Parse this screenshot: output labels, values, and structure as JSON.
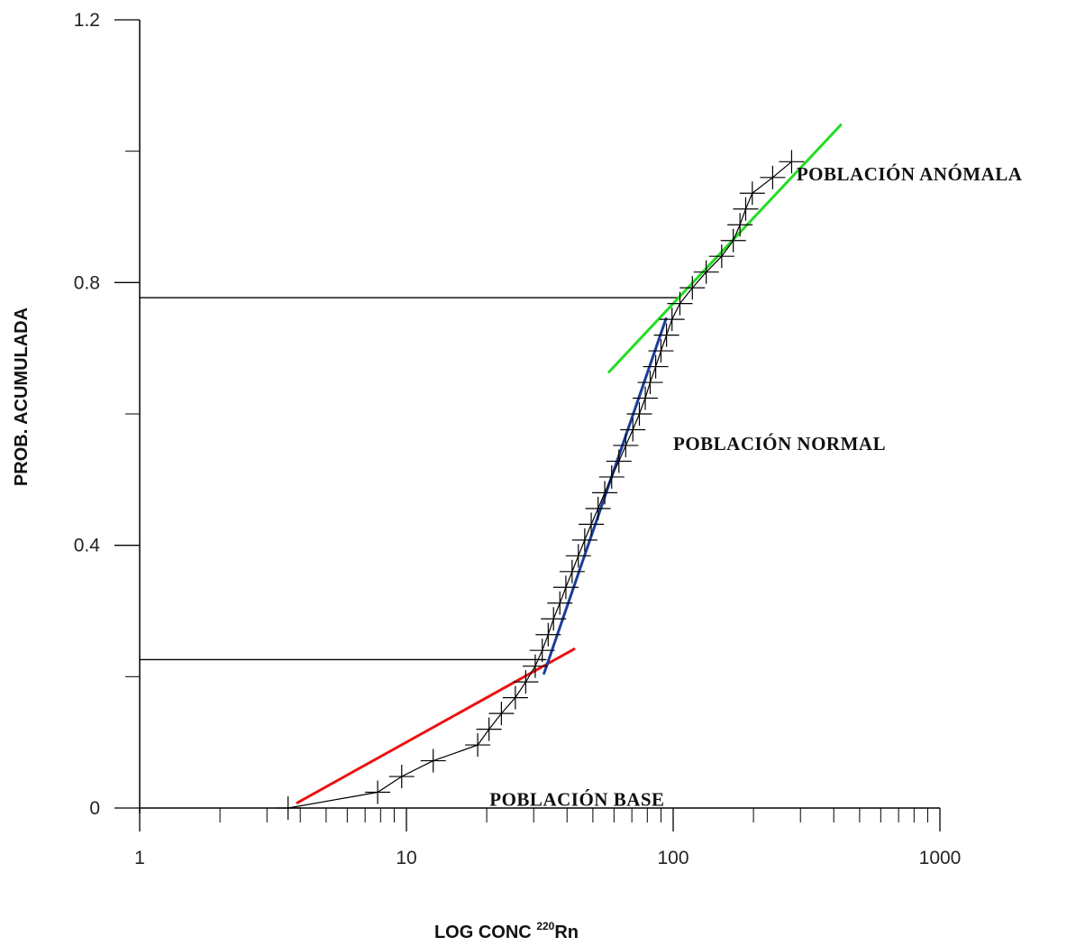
{
  "chart_data": {
    "type": "line",
    "title": "",
    "xlabel": {
      "prefix": "LOG CONC ",
      "sup": "220",
      "suffix": "Rn"
    },
    "ylabel": "PROB. ACUMULADA",
    "x_scale": "log",
    "xlim": [
      1,
      1000
    ],
    "ylim": [
      0,
      1.2
    ],
    "x_ticks": [
      1,
      10,
      100,
      1000
    ],
    "x_tick_labels": [
      "1",
      "10",
      "100",
      "1000"
    ],
    "y_ticks": [
      0,
      0.4,
      0.8,
      1.2
    ],
    "y_tick_labels": [
      "0",
      "0.4",
      "0.8",
      "1.2"
    ],
    "y_minor_ticks": [
      0.2,
      0.6,
      1.0
    ],
    "grid": false,
    "legend": "none",
    "series": [
      {
        "type": "line",
        "marker": "cross",
        "color": "#000000",
        "x": [
          3.6,
          7.8,
          9.6,
          12.6,
          18.5,
          20.4,
          22.7,
          25.6,
          28.0,
          30.4,
          32.3,
          34.0,
          35.6,
          37.6,
          39.6,
          41.8,
          44.1,
          46.6,
          49.3,
          52.3,
          55.4,
          58.8,
          62.6,
          66.4,
          70.6,
          74.7,
          78.6,
          82.0,
          86.0,
          90.0,
          94.4,
          99.0,
          106,
          118,
          133,
          152,
          168,
          178,
          187,
          198,
          236,
          278
        ],
        "y": [
          0.0,
          0.024,
          0.048,
          0.072,
          0.096,
          0.12,
          0.144,
          0.168,
          0.192,
          0.216,
          0.24,
          0.264,
          0.288,
          0.312,
          0.336,
          0.36,
          0.384,
          0.408,
          0.432,
          0.456,
          0.48,
          0.504,
          0.528,
          0.552,
          0.576,
          0.6,
          0.624,
          0.648,
          0.672,
          0.696,
          0.72,
          0.744,
          0.768,
          0.792,
          0.816,
          0.84,
          0.864,
          0.888,
          0.912,
          0.936,
          0.96,
          0.984
        ]
      },
      {
        "type": "fit",
        "color": "#ee1111",
        "x": [
          3.9,
          42.5
        ],
        "y": [
          0.008,
          0.242
        ]
      },
      {
        "type": "fit",
        "color": "#1a3d9a",
        "x": [
          32.8,
          94.0
        ],
        "y": [
          0.205,
          0.745
        ]
      },
      {
        "type": "fit",
        "color": "#22dd22",
        "x": [
          57.5,
          425
        ],
        "y": [
          0.664,
          1.04
        ]
      }
    ],
    "reference_lines": [
      {
        "color": "#000000",
        "y": 0.777,
        "x_end": 106
      },
      {
        "color": "#000000",
        "y": 0.226,
        "x_end": 33.5
      }
    ],
    "annotations": [
      {
        "text": "POBLACIÓN ANÓMALA",
        "x": 290,
        "y": 0.965
      },
      {
        "text": "POBLACIÓN NORMAL",
        "x": 100,
        "y": 0.555
      },
      {
        "text": "POBLACIÓN BASE",
        "x": 20.5,
        "y": 0.013
      }
    ]
  }
}
